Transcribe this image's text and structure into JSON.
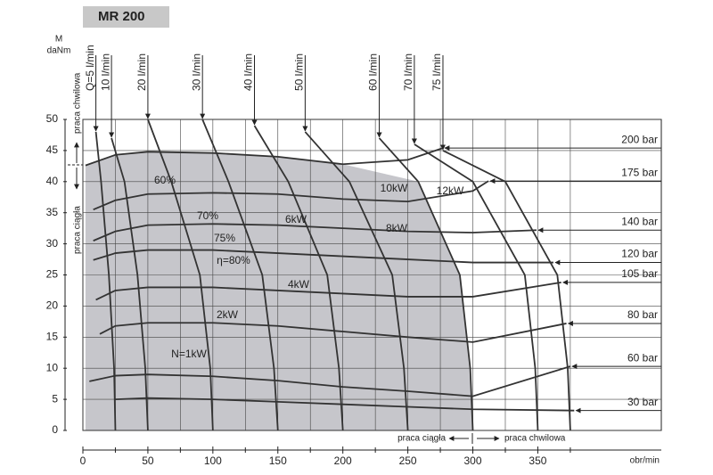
{
  "chart_data": {
    "type": "line",
    "title": "MR 200",
    "y_symbol": "M",
    "ylabel": "daNm",
    "xlabel": "obr/min",
    "xlim": [
      0,
      445
    ],
    "ylim": [
      0,
      50
    ],
    "xticks": [
      0,
      50,
      100,
      150,
      200,
      250,
      300,
      350
    ],
    "xminor": [
      25,
      75,
      125,
      175,
      225,
      275,
      325,
      375
    ],
    "yticks": [
      0,
      5,
      10,
      15,
      20,
      25,
      30,
      35,
      40,
      45,
      50
    ],
    "grid": true,
    "region_color": "#c6c6cb",
    "line_color": "#333333",
    "pressure_lines": [
      {
        "name": "200 bar",
        "x": [
          2,
          25,
          50,
          100,
          150,
          200,
          250,
          277
        ],
        "values": [
          42.6,
          44.3,
          44.8,
          44.6,
          44.0,
          42.8,
          43.5,
          45.4
        ]
      },
      {
        "name": "175 bar",
        "x": [
          8,
          25,
          50,
          100,
          150,
          200,
          250,
          300,
          312
        ],
        "values": [
          35.5,
          37.0,
          38.0,
          38.2,
          38.0,
          37.2,
          36.8,
          38.5,
          40.1
        ]
      },
      {
        "name": "140 bar",
        "x": [
          8,
          25,
          50,
          100,
          150,
          200,
          250,
          300,
          349
        ],
        "values": [
          30.5,
          32.0,
          33.0,
          33.2,
          33.0,
          32.5,
          32.0,
          31.8,
          32.2
        ]
      },
      {
        "name": "120 bar",
        "x": [
          8,
          25,
          50,
          100,
          150,
          200,
          250,
          300,
          362
        ],
        "values": [
          27.4,
          28.5,
          29.0,
          29.0,
          28.5,
          28.0,
          27.5,
          27.0,
          27.0
        ]
      },
      {
        "name": "105 bar",
        "x": [
          10,
          25,
          50,
          100,
          150,
          200,
          250,
          300,
          368
        ],
        "values": [
          21.0,
          22.5,
          23.0,
          23.0,
          22.5,
          22.0,
          21.5,
          21.5,
          23.8
        ]
      },
      {
        "name": "80 bar",
        "x": [
          13,
          25,
          50,
          100,
          150,
          200,
          250,
          300,
          372
        ],
        "values": [
          15.5,
          16.8,
          17.3,
          17.3,
          16.8,
          15.9,
          15.0,
          14.2,
          17.2
        ]
      },
      {
        "name": "60 bar",
        "x": [
          5,
          25,
          50,
          100,
          150,
          200,
          250,
          300,
          375
        ],
        "values": [
          7.9,
          8.8,
          9.0,
          8.7,
          8.0,
          7.0,
          6.3,
          5.5,
          10.3
        ]
      },
      {
        "name": "30 bar",
        "x": [
          25,
          50,
          100,
          150,
          200,
          250,
          300,
          378
        ],
        "values": [
          5.0,
          5.2,
          5.0,
          4.6,
          4.2,
          3.8,
          3.4,
          3.2
        ]
      }
    ],
    "flow_lines": [
      {
        "name": "Q=5 l/min",
        "x": [
          10,
          14,
          20,
          24,
          25
        ],
        "values": [
          48,
          40,
          25,
          10,
          0
        ]
      },
      {
        "name": "10 l/min",
        "x": [
          22,
          32,
          42,
          48,
          50
        ],
        "values": [
          47,
          40,
          25,
          10,
          0
        ]
      },
      {
        "name": "20 l/min",
        "x": [
          50,
          68,
          90,
          98,
          100
        ],
        "values": [
          50,
          40,
          25,
          10,
          0
        ]
      },
      {
        "name": "30 l/min",
        "x": [
          92,
          112,
          138,
          147,
          150
        ],
        "values": [
          50,
          40,
          25,
          10,
          0
        ]
      },
      {
        "name": "40 l/min",
        "x": [
          132,
          158,
          188,
          197,
          200
        ],
        "values": [
          49,
          40,
          25,
          10,
          0
        ]
      },
      {
        "name": "50 l/min",
        "x": [
          171,
          205,
          238,
          247,
          250
        ],
        "values": [
          48,
          40,
          25,
          10,
          0
        ]
      },
      {
        "name": "60 l/min",
        "x": [
          228,
          258,
          290,
          298,
          300
        ],
        "values": [
          47,
          40,
          25,
          10,
          0
        ]
      },
      {
        "name": "70 l/min",
        "x": [
          255,
          300,
          340,
          348,
          350
        ],
        "values": [
          46,
          40,
          25,
          10,
          0
        ]
      },
      {
        "name": "75 l/min",
        "x": [
          277,
          325,
          365,
          373,
          375
        ],
        "values": [
          45,
          40,
          25,
          10,
          0
        ]
      }
    ],
    "efficiency_labels": [
      "60%",
      "70%",
      "75%",
      "η=80%"
    ],
    "power_labels": [
      "N=1kW",
      "2kW",
      "4kW",
      "6kW",
      "8kW",
      "10kW",
      "12kW"
    ],
    "annotations": {
      "left_top": "praca chwilowa",
      "left_bottom": "praca ciągła",
      "bottom_left": "praca ciągła",
      "bottom_right": "praca chwilowa"
    }
  }
}
